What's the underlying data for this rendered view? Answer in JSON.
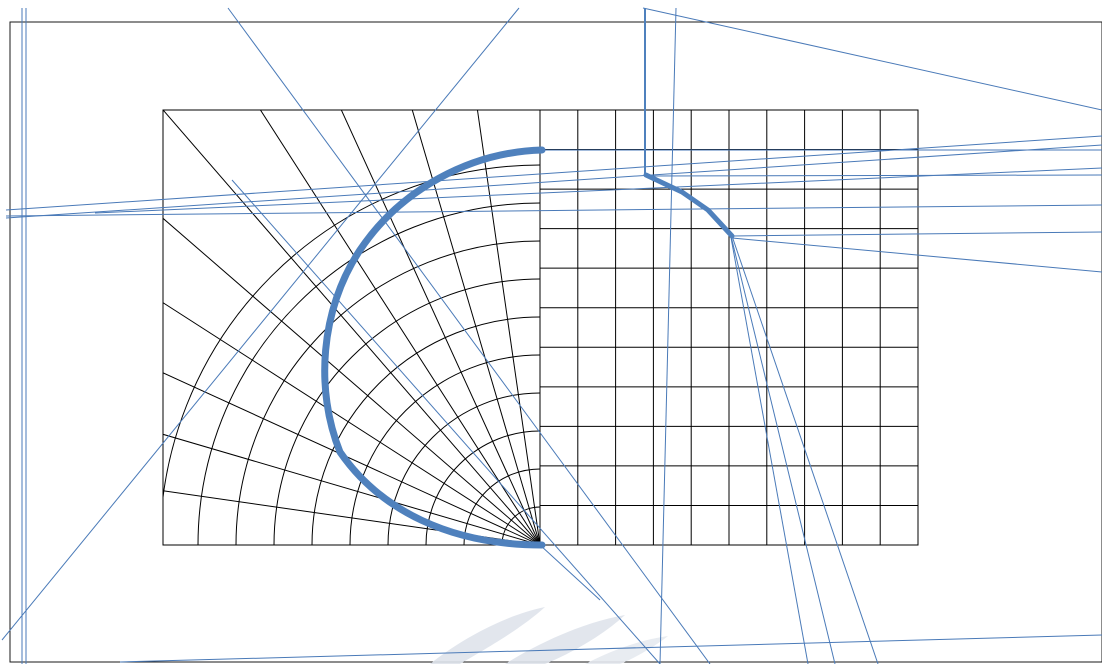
{
  "colors": {
    "background": "#ffffff",
    "grid": "#000000",
    "frame": "#1a1a1a",
    "guide_lines": "#4a7ab8",
    "highlight_curve": "#4f81bd",
    "watermark": "#dfe4ec"
  },
  "grid": {
    "left_region": {
      "style": "polar",
      "ring_count": 10,
      "ray_count": 11
    },
    "right_region": {
      "style": "cartesian",
      "columns": 10,
      "rows": 11
    }
  },
  "highlight": {
    "left_curve": "semicircle",
    "right_curve": "polyline"
  },
  "watermark": {
    "icon": "feather-swoosh-watermark"
  }
}
